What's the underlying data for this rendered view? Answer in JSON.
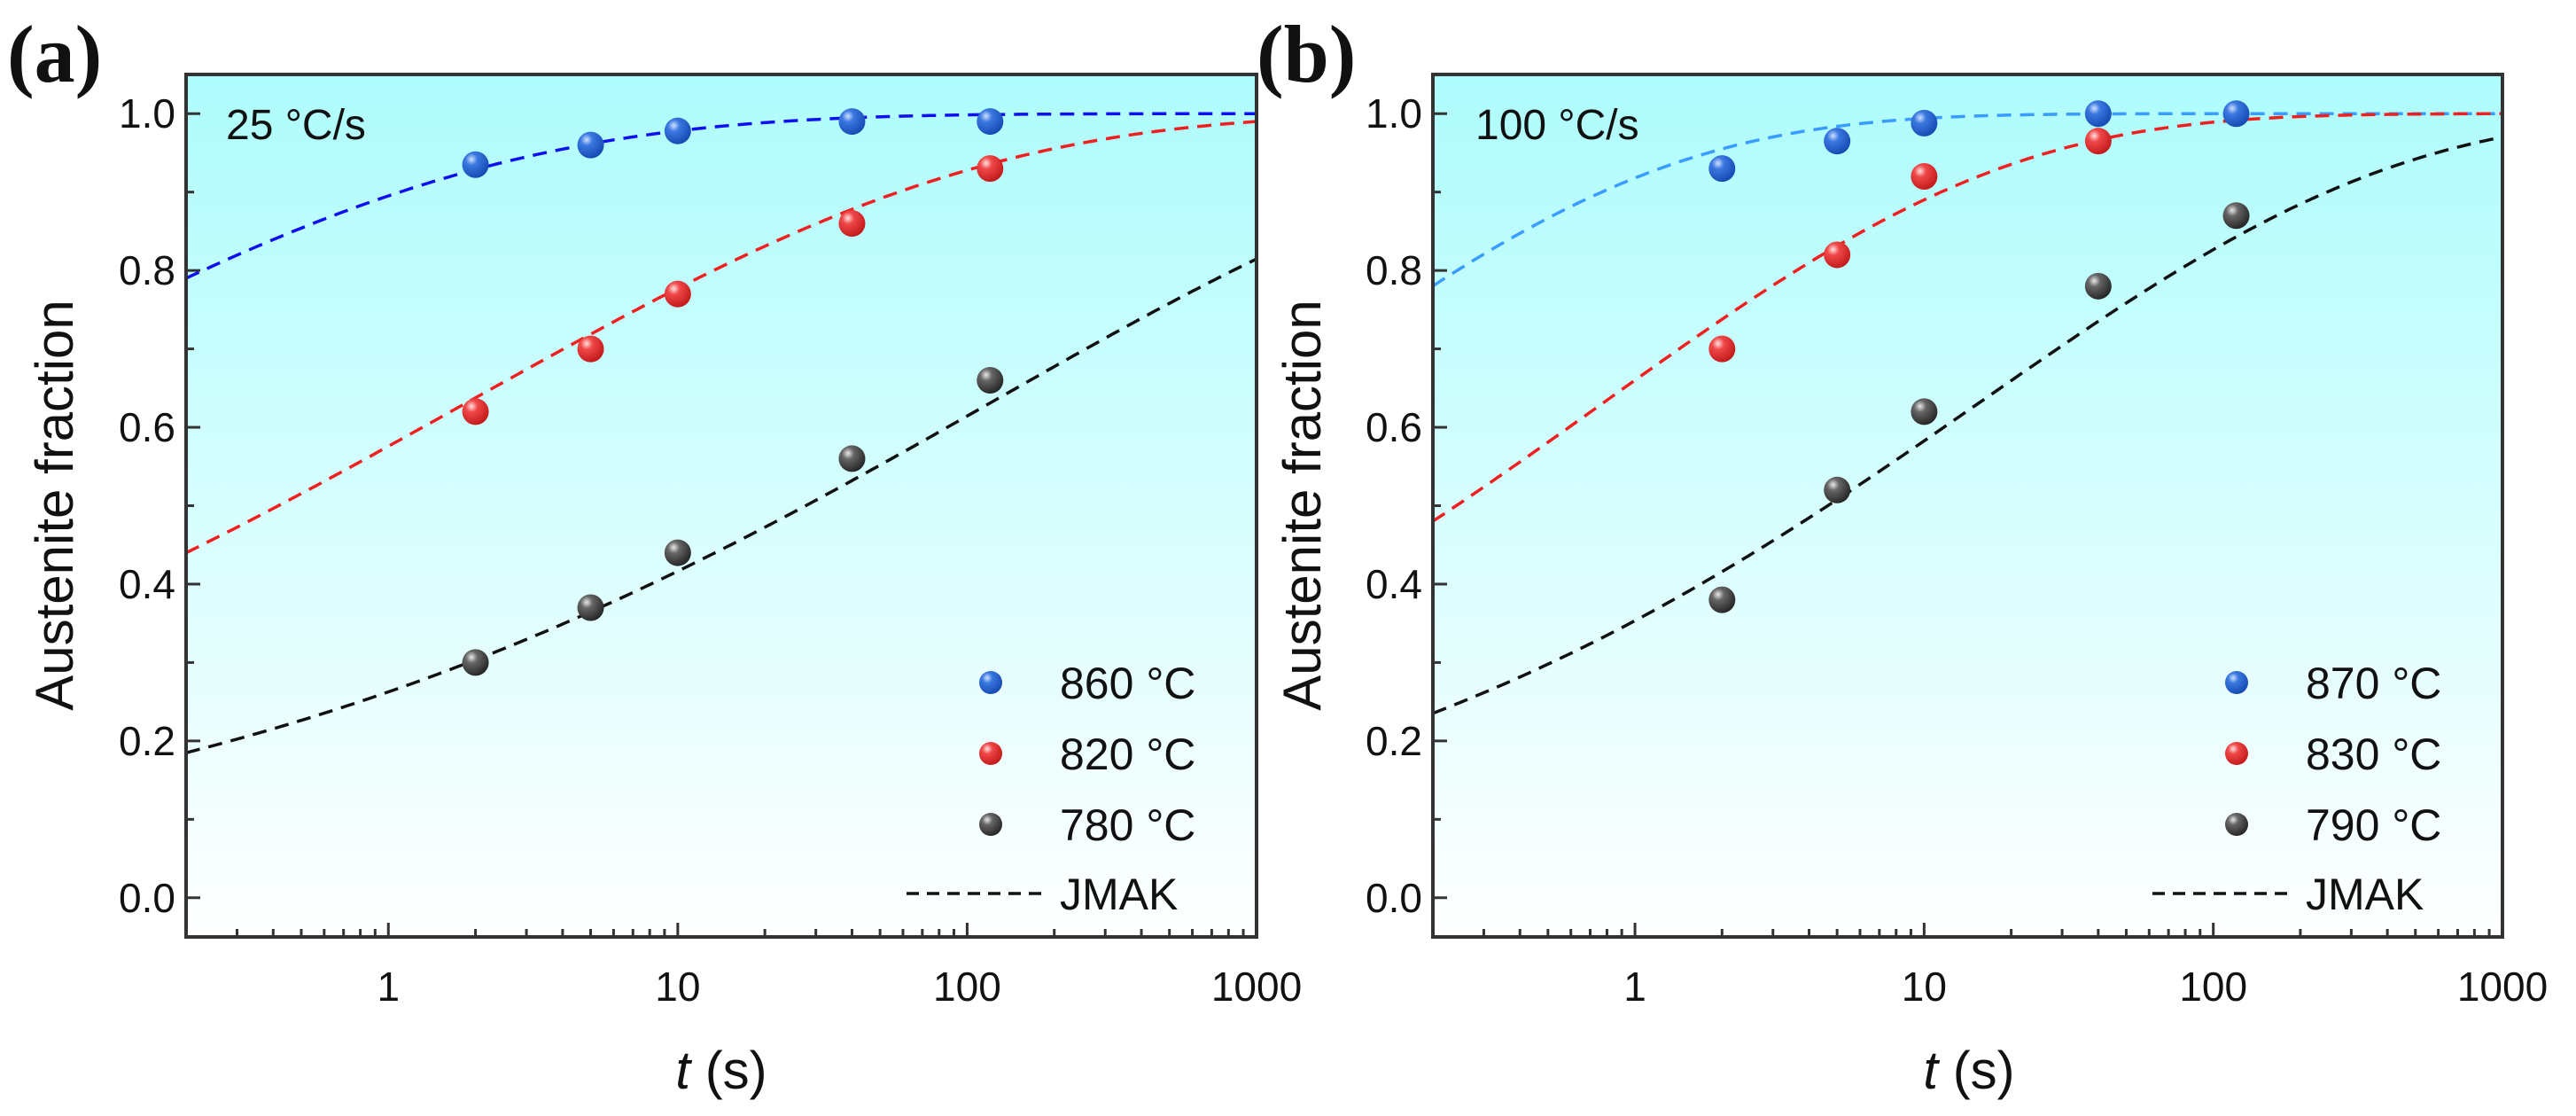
{
  "chart_data": [
    {
      "type": "scatter",
      "panel_label": "(a)",
      "annotation": "25 °C/s",
      "xlabel_italic": "t",
      "xlabel_unit": "(s)",
      "ylabel": "Austenite fraction",
      "xscale": "log",
      "xlim": [
        0.2,
        1000
      ],
      "ylim": [
        -0.05,
        1.05
      ],
      "xticks": [
        1,
        10,
        100,
        1000
      ],
      "xtick_labels": [
        "1",
        "10",
        "100",
        "1000"
      ],
      "yticks": [
        0.0,
        0.2,
        0.4,
        0.6,
        0.8,
        1.0
      ],
      "ytick_labels": [
        "0.0",
        "0.2",
        "0.4",
        "0.6",
        "0.8",
        "1.0"
      ],
      "legend_position": "bottom-right",
      "fit_label": "JMAK",
      "series": [
        {
          "name": "860 °C",
          "color": "#1f5fd6",
          "fit_color": "#1010ee",
          "x": [
            2,
            5,
            10,
            40,
            120
          ],
          "y": [
            0.935,
            0.96,
            0.978,
            0.99,
            0.99
          ],
          "fit": {
            "k": 2.255,
            "n": 0.2286
          }
        },
        {
          "name": "820 °C",
          "color": "#e83a3a",
          "fit_color": "#ee2020",
          "x": [
            2,
            5,
            10,
            40,
            120
          ],
          "y": [
            0.62,
            0.7,
            0.77,
            0.86,
            0.93
          ],
          "fit": {
            "k": 0.8575,
            "n": 0.2433
          }
        },
        {
          "name": "780 °C",
          "color": "#555555",
          "fit_color": "#111111",
          "x": [
            2,
            5,
            10,
            40,
            120
          ],
          "y": [
            0.3,
            0.37,
            0.44,
            0.56,
            0.66
          ],
          "fit": {
            "k": 0.3045,
            "n": 0.2477
          }
        }
      ]
    },
    {
      "type": "scatter",
      "panel_label": "(b)",
      "annotation": "100 °C/s",
      "xlabel_italic": "t",
      "xlabel_unit": "(s)",
      "ylabel": "Austenite fraction",
      "xscale": "log",
      "xlim": [
        0.2,
        1000
      ],
      "ylim": [
        -0.05,
        1.05
      ],
      "xticks": [
        1,
        10,
        100,
        1000
      ],
      "xtick_labels": [
        "1",
        "10",
        "100",
        "1000"
      ],
      "yticks": [
        0.0,
        0.2,
        0.4,
        0.6,
        0.8,
        1.0
      ],
      "ytick_labels": [
        "0.0",
        "0.2",
        "0.4",
        "0.6",
        "0.8",
        "1.0"
      ],
      "legend_position": "bottom-right",
      "fit_label": "JMAK",
      "series": [
        {
          "name": "870 °C",
          "color": "#1f5fd6",
          "fit_color": "#3a9cff",
          "x": [
            2,
            5,
            10,
            40,
            120
          ],
          "y": [
            0.93,
            0.965,
            0.988,
            1.0,
            1.0
          ],
          "fit": {
            "k": 2.5,
            "n": 0.311
          }
        },
        {
          "name": "830 °C",
          "color": "#e83a3a",
          "fit_color": "#ee2020",
          "x": [
            2,
            5,
            10,
            40
          ],
          "y": [
            0.7,
            0.82,
            0.92,
            0.965
          ],
          "fit": {
            "k": 1.079,
            "n": 0.311
          }
        },
        {
          "name": "790 °C",
          "color": "#555555",
          "fit_color": "#111111",
          "x": [
            2,
            5,
            10,
            40,
            120
          ],
          "y": [
            0.38,
            0.52,
            0.62,
            0.78,
            0.87
          ],
          "fit": {
            "k": 0.436,
            "n": 0.302
          }
        }
      ]
    }
  ]
}
